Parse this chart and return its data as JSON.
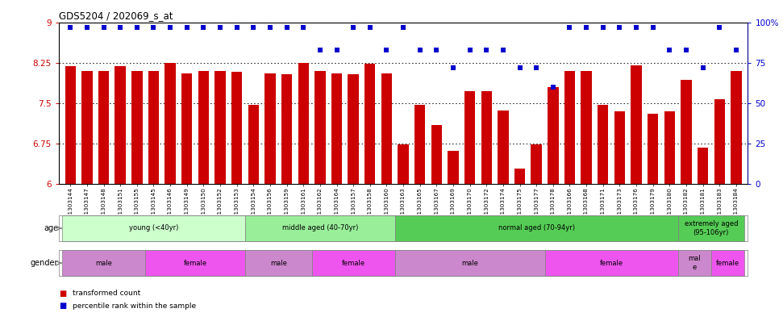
{
  "title": "GDS5204 / 202069_s_at",
  "samples": [
    "GSM1303144",
    "GSM1303147",
    "GSM1303148",
    "GSM1303151",
    "GSM1303155",
    "GSM1303145",
    "GSM1303146",
    "GSM1303149",
    "GSM1303150",
    "GSM1303152",
    "GSM1303153",
    "GSM1303154",
    "GSM1303156",
    "GSM1303159",
    "GSM1303161",
    "GSM1303162",
    "GSM1303164",
    "GSM1303157",
    "GSM1303158",
    "GSM1303160",
    "GSM1303163",
    "GSM1303165",
    "GSM1303167",
    "GSM1303169",
    "GSM1303170",
    "GSM1303172",
    "GSM1303174",
    "GSM1303175",
    "GSM1303177",
    "GSM1303178",
    "GSM1303166",
    "GSM1303168",
    "GSM1303171",
    "GSM1303173",
    "GSM1303176",
    "GSM1303179",
    "GSM1303180",
    "GSM1303182",
    "GSM1303181",
    "GSM1303183",
    "GSM1303184"
  ],
  "bar_values": [
    8.18,
    8.09,
    8.1,
    8.18,
    8.09,
    8.09,
    8.24,
    8.05,
    8.1,
    8.09,
    8.08,
    7.47,
    8.05,
    8.03,
    8.24,
    8.09,
    8.05,
    8.03,
    8.23,
    8.05,
    6.74,
    7.47,
    7.09,
    6.62,
    7.72,
    7.72,
    7.36,
    6.28,
    6.74,
    7.8,
    8.09,
    8.09,
    7.47,
    7.35,
    8.2,
    7.3,
    7.35,
    7.93,
    6.68,
    7.57,
    8.09
  ],
  "blue_values": [
    97,
    97,
    97,
    97,
    97,
    97,
    97,
    97,
    97,
    97,
    97,
    97,
    97,
    97,
    97,
    83,
    83,
    97,
    97,
    83,
    97,
    83,
    83,
    72,
    83,
    83,
    83,
    72,
    72,
    60,
    97,
    97,
    97,
    97,
    97,
    97,
    83,
    83,
    72,
    97,
    83
  ],
  "ylim_left": [
    6.0,
    9.0
  ],
  "ylim_right": [
    0,
    100
  ],
  "yticks_left": [
    6.0,
    6.75,
    7.5,
    8.25,
    9.0
  ],
  "yticks_right": [
    0,
    25,
    50,
    75,
    100
  ],
  "ytick_labels_left": [
    "6",
    "6.75",
    "7.5",
    "8.25",
    "9"
  ],
  "ytick_labels_right": [
    "0",
    "25",
    "50",
    "75",
    "100%"
  ],
  "hlines": [
    6.75,
    7.5,
    8.25
  ],
  "bar_color": "#cc0000",
  "blue_color": "#0000cc",
  "age_groups": [
    {
      "label": "young (<40yr)",
      "start": 0,
      "end": 11,
      "color": "#ccffcc"
    },
    {
      "label": "middle aged (40-70yr)",
      "start": 11,
      "end": 20,
      "color": "#99ee99"
    },
    {
      "label": "normal aged (70-94yr)",
      "start": 20,
      "end": 37,
      "color": "#55cc55"
    },
    {
      "label": "extremely aged\n(95-106yr)",
      "start": 37,
      "end": 41,
      "color": "#55cc55"
    }
  ],
  "gender_groups": [
    {
      "label": "male",
      "start": 0,
      "end": 5,
      "color": "#cc88cc"
    },
    {
      "label": "female",
      "start": 5,
      "end": 11,
      "color": "#ee55ee"
    },
    {
      "label": "male",
      "start": 11,
      "end": 15,
      "color": "#cc88cc"
    },
    {
      "label": "female",
      "start": 15,
      "end": 20,
      "color": "#ee55ee"
    },
    {
      "label": "male",
      "start": 20,
      "end": 29,
      "color": "#cc88cc"
    },
    {
      "label": "female",
      "start": 29,
      "end": 37,
      "color": "#ee55ee"
    },
    {
      "label": "mal\ne",
      "start": 37,
      "end": 39,
      "color": "#cc88cc"
    },
    {
      "label": "female",
      "start": 39,
      "end": 41,
      "color": "#ee55ee"
    }
  ],
  "legend_items": [
    {
      "label": "transformed count",
      "color": "#cc0000"
    },
    {
      "label": "percentile rank within the sample",
      "color": "#0000cc"
    }
  ],
  "fig_width": 9.71,
  "fig_height": 3.93,
  "dpi": 100
}
